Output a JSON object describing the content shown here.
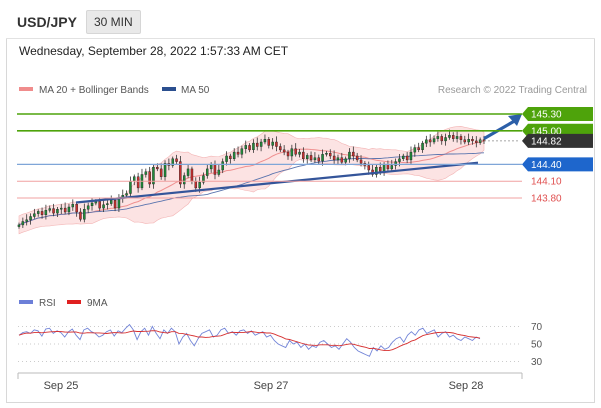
{
  "header": {
    "symbol": "USD/JPY",
    "timeframe": "30 MIN",
    "datetime": "Wednesday, September 28, 2022 1:57:33 AM CET"
  },
  "legend": {
    "items": [
      {
        "label": "MA 20 + Bollinger Bands",
        "color": "#f08c8c"
      },
      {
        "label": "MA 50",
        "color": "#2b4f8f"
      }
    ],
    "copyright": "Research © 2022 Trading Central"
  },
  "levels": [
    {
      "label": "145.30",
      "value": 145.3,
      "style": "green"
    },
    {
      "label": "145.00",
      "value": 145.0,
      "style": "green"
    },
    {
      "label": "144.82",
      "value": 144.82,
      "style": "last"
    },
    {
      "label": "144.40",
      "value": 144.4,
      "style": "pivot"
    },
    {
      "label": "144.10",
      "value": 144.1,
      "style": "support"
    },
    {
      "label": "143.80",
      "value": 143.8,
      "style": "support"
    }
  ],
  "rsi_legend": [
    {
      "label": "RSI",
      "color": "#6c7fd8"
    },
    {
      "label": "9MA",
      "color": "#e02020"
    }
  ],
  "rsi_ticks": [
    "70",
    "50",
    "30"
  ],
  "x_labels": [
    "Sep 25",
    "Sep 27",
    "Sep 28"
  ],
  "colors": {
    "green": "#4ea30b",
    "pivot": "#1e66cc",
    "support": "#e05050",
    "last": "#333333",
    "arrow": "#2c5fa8"
  },
  "chart_data": {
    "type": "candlestick",
    "title": "USD/JPY 30 MIN",
    "ylim": [
      142.3,
      145.55
    ],
    "levels": [
      145.3,
      145.0,
      144.82,
      144.4,
      144.1,
      143.8
    ],
    "x_tick_labels": [
      "Sep 25",
      "Sep 27",
      "Sep 28"
    ],
    "close": [
      143.32,
      143.38,
      143.41,
      143.47,
      143.52,
      143.56,
      143.5,
      143.58,
      143.61,
      143.53,
      143.6,
      143.62,
      143.55,
      143.64,
      143.69,
      143.55,
      143.42,
      143.6,
      143.66,
      143.71,
      143.74,
      143.62,
      143.68,
      143.7,
      143.76,
      143.62,
      143.8,
      143.85,
      143.88,
      144.1,
      144.18,
      143.98,
      144.22,
      144.27,
      144.05,
      144.35,
      144.32,
      144.18,
      144.42,
      144.38,
      144.5,
      144.45,
      144.05,
      144.2,
      144.32,
      144.1,
      143.98,
      144.08,
      144.2,
      144.32,
      144.4,
      144.22,
      144.3,
      144.45,
      144.55,
      144.5,
      144.62,
      144.58,
      144.68,
      144.74,
      144.66,
      144.78,
      144.72,
      144.8,
      144.85,
      144.74,
      144.8,
      144.72,
      144.66,
      144.62,
      144.55,
      144.68,
      144.58,
      144.62,
      144.5,
      144.56,
      144.48,
      144.52,
      144.46,
      144.58,
      144.6,
      144.55,
      144.48,
      144.52,
      144.44,
      144.5,
      144.62,
      144.55,
      144.48,
      144.42,
      144.38,
      144.3,
      144.22,
      144.35,
      144.28,
      144.4,
      144.32,
      144.38,
      144.45,
      144.5,
      144.55,
      144.48,
      144.62,
      144.7,
      144.66,
      144.78,
      144.84,
      144.8,
      144.86,
      144.9,
      144.82,
      144.88,
      144.92,
      144.86,
      144.9,
      144.84,
      144.8,
      144.85,
      144.82,
      144.79,
      144.84,
      144.82
    ],
    "rsi": [
      60,
      63,
      64,
      62,
      66,
      65,
      59,
      67,
      68,
      62,
      65,
      63,
      58,
      64,
      67,
      60,
      55,
      66,
      68,
      64,
      62,
      58,
      60,
      64,
      66,
      59,
      65,
      63,
      68,
      72,
      66,
      55,
      64,
      68,
      60,
      70,
      62,
      56,
      66,
      62,
      68,
      64,
      50,
      58,
      62,
      54,
      48,
      56,
      62,
      64,
      66,
      58,
      60,
      66,
      68,
      62,
      64,
      60,
      65,
      66,
      62,
      65,
      60,
      62,
      64,
      58,
      60,
      54,
      50,
      48,
      46,
      54,
      50,
      52,
      46,
      50,
      44,
      48,
      46,
      52,
      54,
      50,
      46,
      48,
      44,
      50,
      56,
      52,
      46,
      42,
      40,
      38,
      36,
      46,
      42,
      48,
      44,
      46,
      52,
      56,
      58,
      52,
      60,
      64,
      60,
      66,
      68,
      62,
      64,
      66,
      58,
      62,
      64,
      58,
      60,
      56,
      54,
      58,
      56,
      54,
      58,
      56
    ],
    "rsi_ma9": [],
    "rsi_ticks": [
      70,
      50,
      30
    ]
  }
}
